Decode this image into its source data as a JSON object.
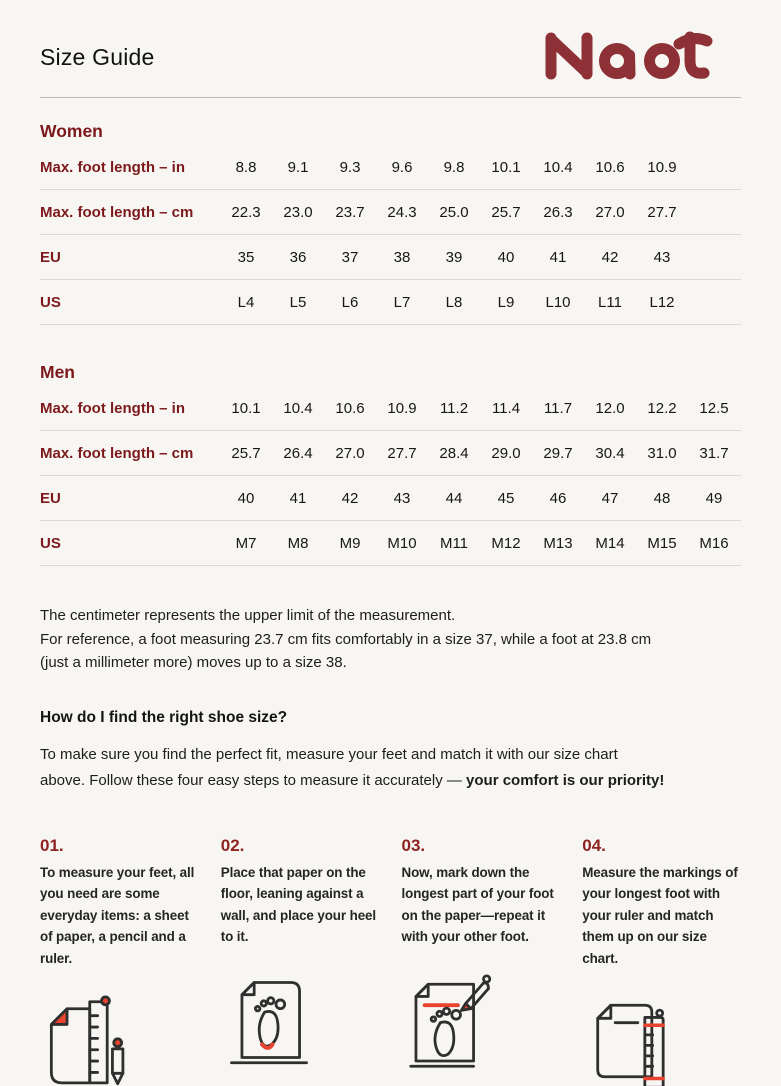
{
  "header": {
    "title": "Size Guide",
    "brand": "Naot"
  },
  "colors": {
    "background": "#f8f6f2",
    "heading_red": "#7c191c",
    "step_number_red": "#8e2421",
    "logo_red": "#8d3136",
    "icon_accent_red": "#e8432e",
    "divider": "#ddd9d3"
  },
  "tables": [
    {
      "section": "Women",
      "rows": [
        {
          "label": "Max. foot length – in",
          "values": [
            "8.8",
            "9.1",
            "9.3",
            "9.6",
            "9.8",
            "10.1",
            "10.4",
            "10.6",
            "10.9"
          ]
        },
        {
          "label": "Max. foot length – cm",
          "values": [
            "22.3",
            "23.0",
            "23.7",
            "24.3",
            "25.0",
            "25.7",
            "26.3",
            "27.0",
            "27.7"
          ]
        },
        {
          "label": "EU",
          "values": [
            "35",
            "36",
            "37",
            "38",
            "39",
            "40",
            "41",
            "42",
            "43"
          ]
        },
        {
          "label": "US",
          "values": [
            "L4",
            "L5",
            "L6",
            "L7",
            "L8",
            "L9",
            "L10",
            "L11",
            "L12"
          ]
        }
      ]
    },
    {
      "section": "Men",
      "rows": [
        {
          "label": "Max. foot length – in",
          "values": [
            "10.1",
            "10.4",
            "10.6",
            "10.9",
            "11.2",
            "11.4",
            "11.7",
            "12.0",
            "12.2",
            "12.5"
          ]
        },
        {
          "label": "Max. foot length – cm",
          "values": [
            "25.7",
            "26.4",
            "27.0",
            "27.7",
            "28.4",
            "29.0",
            "29.7",
            "30.4",
            "31.0",
            "31.7"
          ]
        },
        {
          "label": "EU",
          "values": [
            "40",
            "41",
            "42",
            "43",
            "44",
            "45",
            "46",
            "47",
            "48",
            "49"
          ]
        },
        {
          "label": "US",
          "values": [
            "M7",
            "M8",
            "M9",
            "M10",
            "M11",
            "M12",
            "M13",
            "M14",
            "M15",
            "M16"
          ]
        }
      ]
    }
  ],
  "note": {
    "lines": [
      "The centimeter represents the upper limit of the measurement.",
      "For reference, a foot measuring 23.7 cm fits comfortably in a size 37, while a foot at 23.8 cm",
      "(just a millimeter more) moves up to a size 38."
    ]
  },
  "how_to": {
    "heading": "How do I find the right shoe size?",
    "para_line1": "To make sure you find the perfect fit, measure your feet and match it with our size chart",
    "para_line2": "above. Follow these four easy steps to measure it accurately — ",
    "para_line2_bold": "your comfort is our priority!"
  },
  "steps": [
    {
      "number": "01.",
      "text": "To measure your feet, all you need are some everyday items: a sheet of paper, a pencil and a ruler.",
      "icon": "paper-pencil-ruler-icon"
    },
    {
      "number": "02.",
      "text": "Place that paper on the floor, leaning against a wall, and place your heel to it.",
      "icon": "paper-footprint-heel-icon"
    },
    {
      "number": "03.",
      "text": "Now, mark down the longest part of your foot on the paper—repeat it with your other foot.",
      "icon": "paper-footprint-pencil-mark-icon"
    },
    {
      "number": "04.",
      "text": "Measure the markings of your longest foot with your ruler and match them up on our size chart.",
      "icon": "paper-ruler-measure-icon"
    }
  ]
}
